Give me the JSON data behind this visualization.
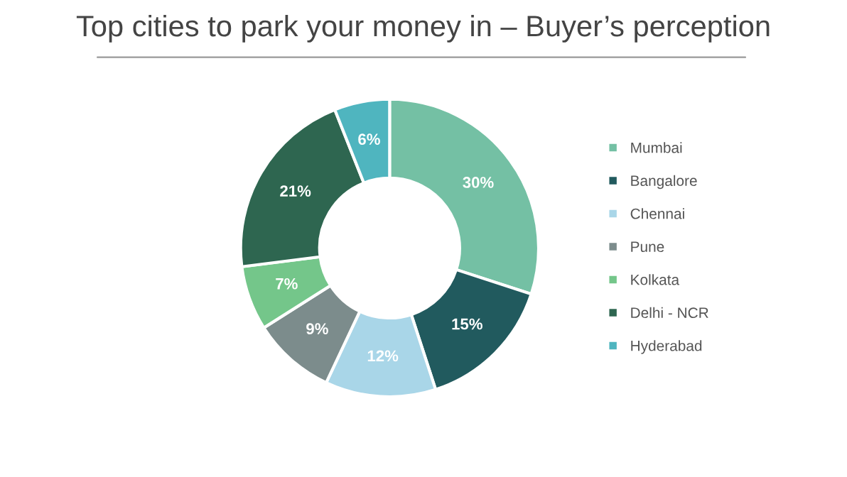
{
  "chart_data": {
    "type": "donut",
    "title": "Top cities to park your money in – Buyer’s perception",
    "categories": [
      "Mumbai",
      "Bangalore",
      "Chennai",
      "Pune",
      "Kolkata",
      "Delhi - NCR",
      "Hyderabad"
    ],
    "values": [
      30,
      15,
      12,
      9,
      7,
      21,
      6
    ],
    "colors": [
      "#74c0a4",
      "#215a5e",
      "#a9d6e8",
      "#7c8c8c",
      "#74c68a",
      "#2e6650",
      "#4fb5bf"
    ],
    "value_labels": [
      "30%",
      "15%",
      "12%",
      "9%",
      "7%",
      "21%",
      "6%"
    ],
    "legend": "right"
  }
}
